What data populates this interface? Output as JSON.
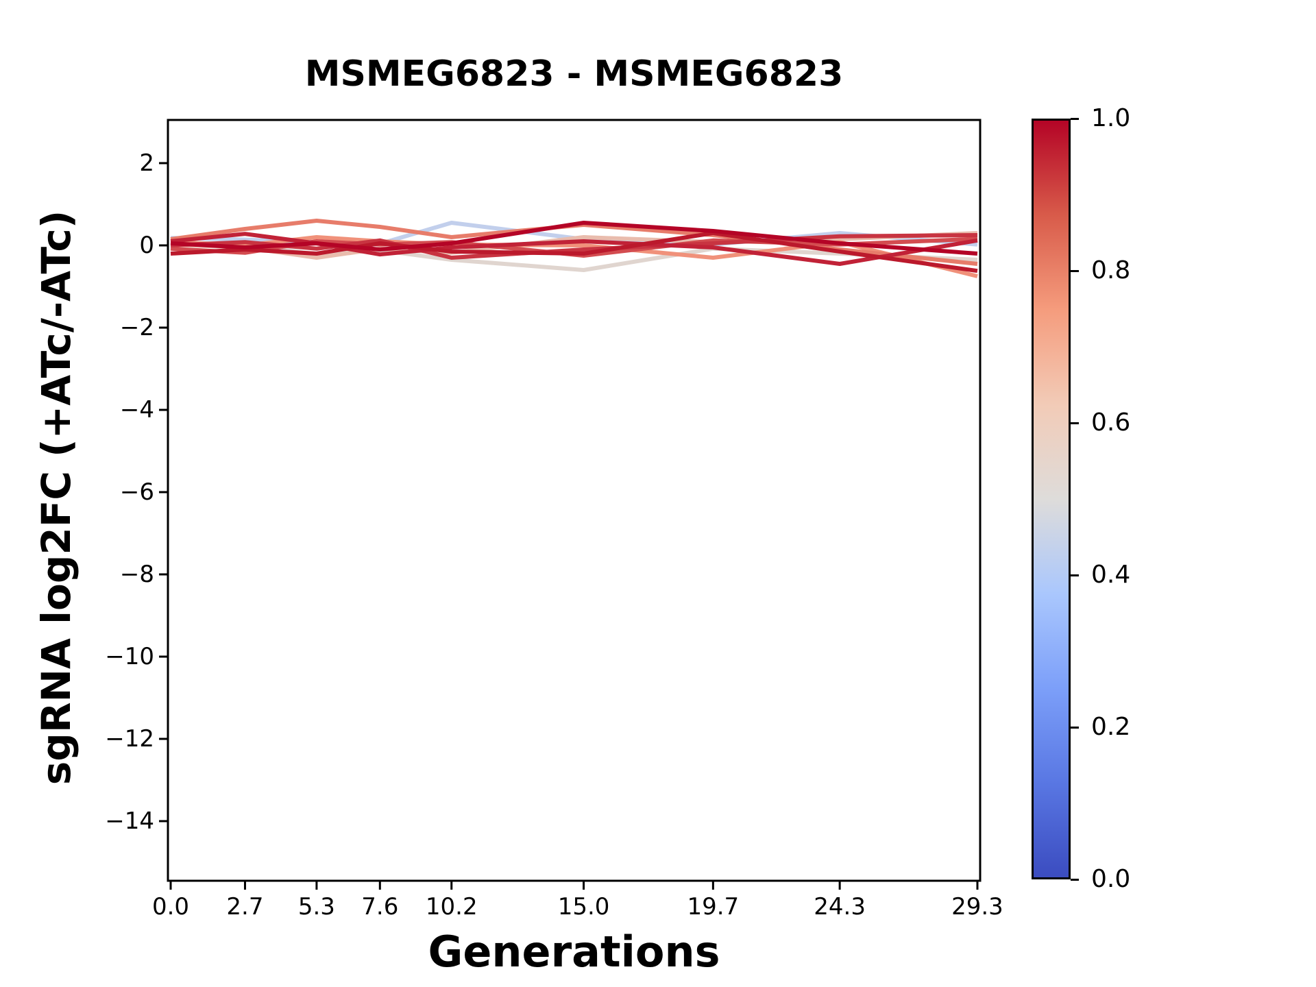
{
  "title": "MSMEG6823 - MSMEG6823",
  "axes": {
    "xlabel": "Generations",
    "ylabel": "sgRNA log2FC (+ATc/-ATc)",
    "x_tick_labels": [
      "0.0",
      "2.7",
      "5.3",
      "7.6",
      "10.2",
      "15.0",
      "19.7",
      "24.3",
      "29.3"
    ],
    "y_tick_labels": [
      "2",
      "0",
      "−2",
      "−4",
      "−6",
      "−8",
      "−10",
      "−12",
      "−14"
    ],
    "y_tick_values": [
      2,
      0,
      -2,
      -4,
      -6,
      -8,
      -10,
      -12,
      -14
    ]
  },
  "colorbar": {
    "colormap": "coolwarm",
    "tick_labels": [
      "1.0",
      "0.8",
      "0.6",
      "0.4",
      "0.2",
      "0.0"
    ],
    "tick_values": [
      1.0,
      0.8,
      0.6,
      0.4,
      0.2,
      0.0
    ],
    "min_color": "#3b4cc0",
    "mid_color": "#dedcda",
    "max_color": "#b40426"
  },
  "chart_data": {
    "type": "line",
    "title": "MSMEG6823 - MSMEG6823",
    "xlabel": "Generations",
    "ylabel": "sgRNA log2FC (+ATc/-ATc)",
    "x": [
      0.0,
      2.7,
      5.3,
      7.6,
      10.2,
      15.0,
      19.7,
      24.3,
      29.3
    ],
    "xlim": [
      -0.1,
      29.4
    ],
    "ylim": [
      -15.45,
      3.05
    ],
    "grid": false,
    "colormap": "coolwarm",
    "line_width": 6,
    "series": [
      {
        "name": "line_1",
        "color_value": 0.43,
        "color": "#c2cfec",
        "values": [
          0.18,
          0.14,
          0.08,
          0.04,
          0.55,
          0.15,
          0.02,
          0.3,
          0.02
        ]
      },
      {
        "name": "line_2",
        "color_value": 0.53,
        "color": "#e0d5cf",
        "values": [
          0.06,
          0.04,
          -0.22,
          -0.12,
          -0.35,
          -0.6,
          -0.08,
          -0.2,
          -0.35
        ]
      },
      {
        "name": "line_3",
        "color_value": 0.62,
        "color": "#e9bcad",
        "values": [
          0.02,
          -0.05,
          -0.3,
          -0.08,
          -0.18,
          0.2,
          0.08,
          0.15,
          0.3
        ]
      },
      {
        "name": "line_4",
        "color_value": 0.76,
        "color": "#f0917a",
        "values": [
          0.08,
          0.0,
          0.2,
          0.1,
          0.02,
          0.0,
          -0.3,
          0.08,
          -0.75
        ]
      },
      {
        "name": "line_5",
        "color_value": 0.8,
        "color": "#e77c6a",
        "values": [
          0.15,
          0.4,
          0.6,
          0.45,
          0.2,
          0.5,
          0.25,
          -0.1,
          -0.45
        ]
      },
      {
        "name": "line_6",
        "color_value": 0.88,
        "color": "#d34c50",
        "values": [
          -0.08,
          -0.18,
          0.1,
          0.02,
          0.08,
          -0.25,
          0.12,
          0.02,
          0.16
        ]
      },
      {
        "name": "line_7",
        "color_value": 0.92,
        "color": "#c83441",
        "values": [
          0.0,
          0.08,
          -0.08,
          0.12,
          -0.3,
          -0.1,
          0.05,
          0.22,
          0.25
        ]
      },
      {
        "name": "line_8",
        "color_value": 0.95,
        "color": "#c12237",
        "values": [
          0.1,
          0.28,
          0.05,
          -0.22,
          -0.05,
          0.1,
          -0.05,
          -0.45,
          0.12
        ]
      },
      {
        "name": "line_9",
        "color_value": 0.97,
        "color": "#bb192c",
        "values": [
          -0.2,
          -0.1,
          -0.2,
          0.05,
          -0.15,
          -0.2,
          0.3,
          -0.15,
          -0.62
        ]
      },
      {
        "name": "line_10",
        "color_value": 1.0,
        "color": "#b40426",
        "values": [
          0.05,
          -0.05,
          0.05,
          -0.1,
          0.05,
          0.55,
          0.35,
          0.05,
          -0.2
        ]
      }
    ]
  }
}
